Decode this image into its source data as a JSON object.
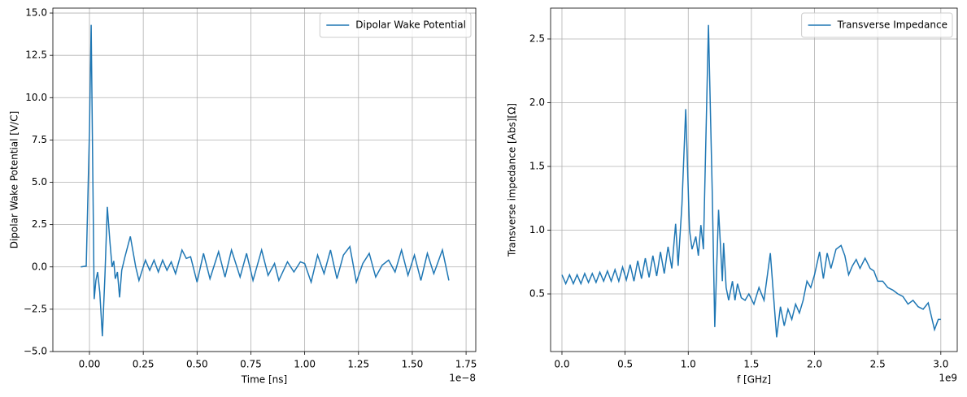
{
  "chart_data": [
    {
      "type": "line",
      "xlabel": "Time [ns]",
      "ylabel": "Dipolar Wake Potential [V/C]",
      "x_offset_label": "1e−8",
      "xlim": [
        -0.17,
        1.795
      ],
      "ylim": [
        -5,
        15.29
      ],
      "xticks": [
        {
          "value": 0,
          "label": "0.00"
        },
        {
          "value": 0.25,
          "label": "0.25"
        },
        {
          "value": 0.5,
          "label": "0.50"
        },
        {
          "value": 0.75,
          "label": "0.75"
        },
        {
          "value": 1,
          "label": "1.00"
        },
        {
          "value": 1.25,
          "label": "1.25"
        },
        {
          "value": 1.5,
          "label": "1.50"
        },
        {
          "value": 1.75,
          "label": "1.75"
        }
      ],
      "yticks": [
        {
          "value": -5,
          "label": "−5.0"
        },
        {
          "value": -2.5,
          "label": "−2.5"
        },
        {
          "value": 0,
          "label": "0.0"
        },
        2.5,
        {
          "value": 5,
          "label": "5.0"
        },
        7.5,
        {
          "value": 10,
          "label": "10.0"
        },
        12.5,
        {
          "value": 15,
          "label": "15.0"
        }
      ],
      "grid": true,
      "legend": "upper right",
      "x": [
        -0.04,
        -0.015,
        0.0,
        0.008,
        0.016,
        0.022,
        0.03,
        0.038,
        0.048,
        0.06,
        0.072,
        0.083,
        0.095,
        0.105,
        0.113,
        0.12,
        0.13,
        0.14,
        0.15,
        0.165,
        0.19,
        0.215,
        0.23,
        0.26,
        0.28,
        0.3,
        0.32,
        0.34,
        0.36,
        0.38,
        0.4,
        0.43,
        0.45,
        0.47,
        0.5,
        0.53,
        0.56,
        0.6,
        0.63,
        0.66,
        0.7,
        0.73,
        0.76,
        0.8,
        0.83,
        0.86,
        0.88,
        0.92,
        0.95,
        0.98,
        1.0,
        1.03,
        1.06,
        1.09,
        1.12,
        1.15,
        1.18,
        1.21,
        1.24,
        1.27,
        1.3,
        1.33,
        1.36,
        1.39,
        1.42,
        1.45,
        1.48,
        1.51,
        1.54,
        1.57,
        1.6,
        1.64,
        1.67
      ],
      "series": [
        {
          "name": "Dipolar Wake Potential",
          "color": "#1f77b4",
          "values": [
            0,
            0.05,
            8,
            14.3,
            5,
            -1.9,
            -0.8,
            -0.3,
            -1.5,
            -4.1,
            -0.5,
            3.55,
            1.5,
            0,
            0.35,
            -0.7,
            -0.3,
            -1.8,
            -0.2,
            0.6,
            1.8,
            0.0,
            -0.8,
            0.4,
            -0.2,
            0.4,
            -0.3,
            0.4,
            -0.2,
            0.3,
            -0.4,
            1.0,
            0.5,
            0.6,
            -0.9,
            0.8,
            -0.7,
            0.9,
            -0.6,
            1.0,
            -0.6,
            0.8,
            -0.8,
            1.0,
            -0.5,
            0.2,
            -0.8,
            0.3,
            -0.3,
            0.3,
            0.2,
            -0.9,
            0.7,
            -0.4,
            1.0,
            -0.7,
            0.7,
            1.2,
            -0.9,
            0.2,
            0.8,
            -0.6,
            0.1,
            0.4,
            -0.3,
            1.0,
            -0.5,
            0.7,
            -0.8,
            0.8,
            -0.4,
            1.0,
            -0.8
          ]
        }
      ]
    },
    {
      "type": "line",
      "xlabel": "f [GHz]",
      "ylabel": "Transverse impedance [Abs][Ω]",
      "x_offset_label": "1e9",
      "xlim": [
        -0.09,
        3.13
      ],
      "ylim": [
        0.048,
        2.742
      ],
      "xticks": [
        {
          "value": 0,
          "label": "0.0"
        },
        0.5,
        {
          "value": 1,
          "label": "1.0"
        },
        1.5,
        {
          "value": 2,
          "label": "2.0"
        },
        2.5,
        {
          "value": 3,
          "label": "3.0"
        }
      ],
      "yticks": [
        0.5,
        {
          "value": 1,
          "label": "1.0"
        },
        1.5,
        {
          "value": 2,
          "label": "2.0"
        },
        2.5
      ],
      "grid": true,
      "legend": "upper right",
      "x": [
        0,
        0.03,
        0.06,
        0.09,
        0.12,
        0.15,
        0.18,
        0.21,
        0.24,
        0.27,
        0.3,
        0.33,
        0.36,
        0.39,
        0.42,
        0.45,
        0.48,
        0.51,
        0.54,
        0.57,
        0.6,
        0.63,
        0.66,
        0.69,
        0.72,
        0.75,
        0.78,
        0.81,
        0.84,
        0.87,
        0.9,
        0.92,
        0.95,
        0.98,
        1.01,
        1.03,
        1.06,
        1.08,
        1.1,
        1.12,
        1.16,
        1.19,
        1.21,
        1.24,
        1.27,
        1.28,
        1.3,
        1.32,
        1.35,
        1.37,
        1.39,
        1.42,
        1.45,
        1.48,
        1.52,
        1.56,
        1.6,
        1.65,
        1.7,
        1.73,
        1.76,
        1.79,
        1.82,
        1.85,
        1.88,
        1.91,
        1.94,
        1.97,
        2.0,
        2.04,
        2.07,
        2.1,
        2.13,
        2.17,
        2.21,
        2.24,
        2.27,
        2.3,
        2.33,
        2.36,
        2.4,
        2.44,
        2.47,
        2.5,
        2.54,
        2.58,
        2.62,
        2.66,
        2.7,
        2.74,
        2.78,
        2.82,
        2.86,
        2.9,
        2.95,
        2.98,
        3.0
      ],
      "series": [
        {
          "name": "Transverse Impedance",
          "color": "#1f77b4",
          "values": [
            0.65,
            0.58,
            0.65,
            0.58,
            0.65,
            0.58,
            0.66,
            0.59,
            0.66,
            0.59,
            0.67,
            0.6,
            0.68,
            0.6,
            0.69,
            0.6,
            0.71,
            0.61,
            0.73,
            0.6,
            0.76,
            0.62,
            0.78,
            0.63,
            0.8,
            0.64,
            0.83,
            0.66,
            0.87,
            0.7,
            1.05,
            0.72,
            1.2,
            1.95,
            1.0,
            0.85,
            0.95,
            0.8,
            1.04,
            0.85,
            2.61,
            1.3,
            0.24,
            1.16,
            0.6,
            0.9,
            0.55,
            0.45,
            0.6,
            0.45,
            0.58,
            0.47,
            0.45,
            0.5,
            0.42,
            0.55,
            0.45,
            0.82,
            0.16,
            0.4,
            0.25,
            0.38,
            0.3,
            0.42,
            0.35,
            0.45,
            0.6,
            0.55,
            0.65,
            0.83,
            0.62,
            0.82,
            0.7,
            0.85,
            0.88,
            0.8,
            0.65,
            0.72,
            0.77,
            0.7,
            0.78,
            0.7,
            0.68,
            0.6,
            0.6,
            0.55,
            0.53,
            0.5,
            0.48,
            0.42,
            0.45,
            0.4,
            0.38,
            0.43,
            0.22,
            0.3,
            0.3
          ]
        }
      ]
    }
  ]
}
